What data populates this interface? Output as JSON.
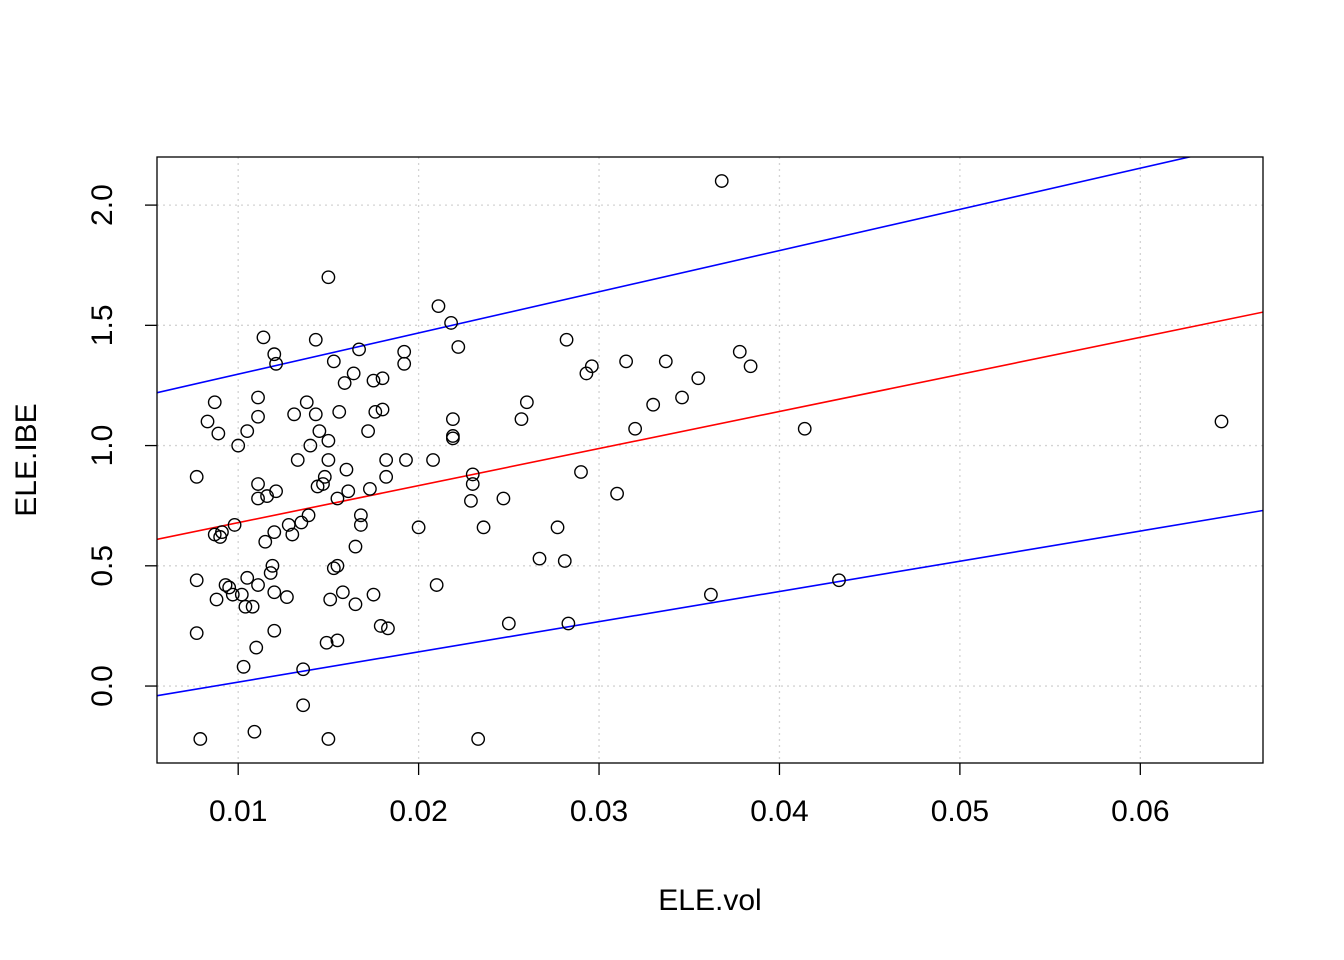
{
  "chart_data": {
    "type": "scatter",
    "title": "",
    "xlabel": "ELE.vol",
    "ylabel": "ELE.IBE",
    "xlim": [
      0.0055,
      0.0668
    ],
    "ylim": [
      -0.32,
      2.2
    ],
    "x_ticks": [
      0.01,
      0.02,
      0.03,
      0.04,
      0.05,
      0.06
    ],
    "x_tick_labels": [
      "0.01",
      "0.02",
      "0.03",
      "0.04",
      "0.05",
      "0.06"
    ],
    "y_ticks": [
      0.0,
      0.5,
      1.0,
      1.5,
      2.0
    ],
    "y_tick_labels": [
      "0.0",
      "0.5",
      "1.0",
      "1.5",
      "2.0"
    ],
    "grid": true,
    "point_color": "#000000",
    "lines": [
      {
        "name": "upper-bound",
        "color": "#0000ff",
        "x": [
          0.0055,
          0.0668
        ],
        "y": [
          1.22,
          2.27
        ]
      },
      {
        "name": "regression",
        "color": "#ff0000",
        "x": [
          0.0055,
          0.0668
        ],
        "y": [
          0.61,
          1.555
        ]
      },
      {
        "name": "lower-bound",
        "color": "#0000ff",
        "x": [
          0.0055,
          0.0668
        ],
        "y": [
          -0.04,
          0.73
        ]
      }
    ],
    "points": [
      [
        0.0077,
        0.87
      ],
      [
        0.0077,
        0.44
      ],
      [
        0.0077,
        0.22
      ],
      [
        0.0079,
        -0.22
      ],
      [
        0.0083,
        1.1
      ],
      [
        0.0087,
        1.18
      ],
      [
        0.0087,
        0.63
      ],
      [
        0.0088,
        0.36
      ],
      [
        0.0089,
        1.05
      ],
      [
        0.009,
        0.62
      ],
      [
        0.0091,
        0.64
      ],
      [
        0.0093,
        0.42
      ],
      [
        0.0095,
        0.41
      ],
      [
        0.0097,
        0.38
      ],
      [
        0.0098,
        0.67
      ],
      [
        0.01,
        1.0
      ],
      [
        0.0102,
        0.38
      ],
      [
        0.0103,
        0.08
      ],
      [
        0.0104,
        0.33
      ],
      [
        0.0105,
        0.45
      ],
      [
        0.0105,
        1.06
      ],
      [
        0.0108,
        0.33
      ],
      [
        0.0109,
        -0.19
      ],
      [
        0.011,
        0.16
      ],
      [
        0.0111,
        0.42
      ],
      [
        0.0111,
        1.12
      ],
      [
        0.0111,
        1.2
      ],
      [
        0.0111,
        0.84
      ],
      [
        0.0111,
        0.78
      ],
      [
        0.0114,
        1.45
      ],
      [
        0.0115,
        0.6
      ],
      [
        0.0116,
        0.79
      ],
      [
        0.0118,
        0.47
      ],
      [
        0.0119,
        0.5
      ],
      [
        0.012,
        0.23
      ],
      [
        0.012,
        0.39
      ],
      [
        0.012,
        0.64
      ],
      [
        0.012,
        1.38
      ],
      [
        0.0121,
        0.81
      ],
      [
        0.0121,
        1.34
      ],
      [
        0.0127,
        0.37
      ],
      [
        0.0128,
        0.67
      ],
      [
        0.013,
        0.63
      ],
      [
        0.0131,
        1.13
      ],
      [
        0.0133,
        0.94
      ],
      [
        0.0135,
        0.68
      ],
      [
        0.0136,
        0.07
      ],
      [
        0.0136,
        -0.08
      ],
      [
        0.0138,
        1.18
      ],
      [
        0.0139,
        0.71
      ],
      [
        0.014,
        1.0
      ],
      [
        0.0143,
        1.44
      ],
      [
        0.0143,
        1.13
      ],
      [
        0.0144,
        0.83
      ],
      [
        0.0145,
        1.06
      ],
      [
        0.0147,
        0.84
      ],
      [
        0.0148,
        0.87
      ],
      [
        0.0149,
        0.18
      ],
      [
        0.015,
        1.7
      ],
      [
        0.015,
        1.02
      ],
      [
        0.015,
        0.94
      ],
      [
        0.015,
        -0.22
      ],
      [
        0.0151,
        0.36
      ],
      [
        0.0153,
        1.35
      ],
      [
        0.0153,
        0.49
      ],
      [
        0.0155,
        0.19
      ],
      [
        0.0155,
        0.5
      ],
      [
        0.0155,
        0.78
      ],
      [
        0.0156,
        1.14
      ],
      [
        0.0158,
        0.39
      ],
      [
        0.0159,
        1.26
      ],
      [
        0.016,
        0.9
      ],
      [
        0.0161,
        0.81
      ],
      [
        0.0164,
        1.3
      ],
      [
        0.0165,
        0.34
      ],
      [
        0.0165,
        0.58
      ],
      [
        0.0167,
        1.4
      ],
      [
        0.0168,
        0.71
      ],
      [
        0.0168,
        0.67
      ],
      [
        0.0172,
        1.06
      ],
      [
        0.0173,
        0.82
      ],
      [
        0.0175,
        1.27
      ],
      [
        0.0175,
        0.38
      ],
      [
        0.0176,
        1.14
      ],
      [
        0.0179,
        0.25
      ],
      [
        0.018,
        1.28
      ],
      [
        0.018,
        1.15
      ],
      [
        0.0182,
        0.87
      ],
      [
        0.0182,
        0.94
      ],
      [
        0.0183,
        0.24
      ],
      [
        0.0192,
        1.39
      ],
      [
        0.0192,
        1.34
      ],
      [
        0.0193,
        0.94
      ],
      [
        0.02,
        0.66
      ],
      [
        0.0208,
        0.94
      ],
      [
        0.021,
        0.42
      ],
      [
        0.0211,
        1.58
      ],
      [
        0.0218,
        1.51
      ],
      [
        0.0219,
        1.04
      ],
      [
        0.0219,
        1.11
      ],
      [
        0.0219,
        1.03
      ],
      [
        0.0222,
        1.41
      ],
      [
        0.0229,
        0.77
      ],
      [
        0.023,
        0.88
      ],
      [
        0.023,
        0.84
      ],
      [
        0.0233,
        -0.22
      ],
      [
        0.0236,
        0.66
      ],
      [
        0.0247,
        0.78
      ],
      [
        0.025,
        0.26
      ],
      [
        0.0257,
        1.11
      ],
      [
        0.026,
        1.18
      ],
      [
        0.0267,
        0.53
      ],
      [
        0.0277,
        0.66
      ],
      [
        0.0281,
        0.52
      ],
      [
        0.0282,
        1.44
      ],
      [
        0.0283,
        0.26
      ],
      [
        0.029,
        0.89
      ],
      [
        0.0293,
        1.3
      ],
      [
        0.0296,
        1.33
      ],
      [
        0.031,
        0.8
      ],
      [
        0.0315,
        1.35
      ],
      [
        0.032,
        1.07
      ],
      [
        0.033,
        1.17
      ],
      [
        0.0337,
        1.35
      ],
      [
        0.0346,
        1.2
      ],
      [
        0.0355,
        1.28
      ],
      [
        0.0362,
        0.38
      ],
      [
        0.0368,
        2.1
      ],
      [
        0.0378,
        1.39
      ],
      [
        0.0384,
        1.33
      ],
      [
        0.0414,
        1.07
      ],
      [
        0.0433,
        0.44
      ],
      [
        0.0645,
        1.1
      ]
    ]
  }
}
